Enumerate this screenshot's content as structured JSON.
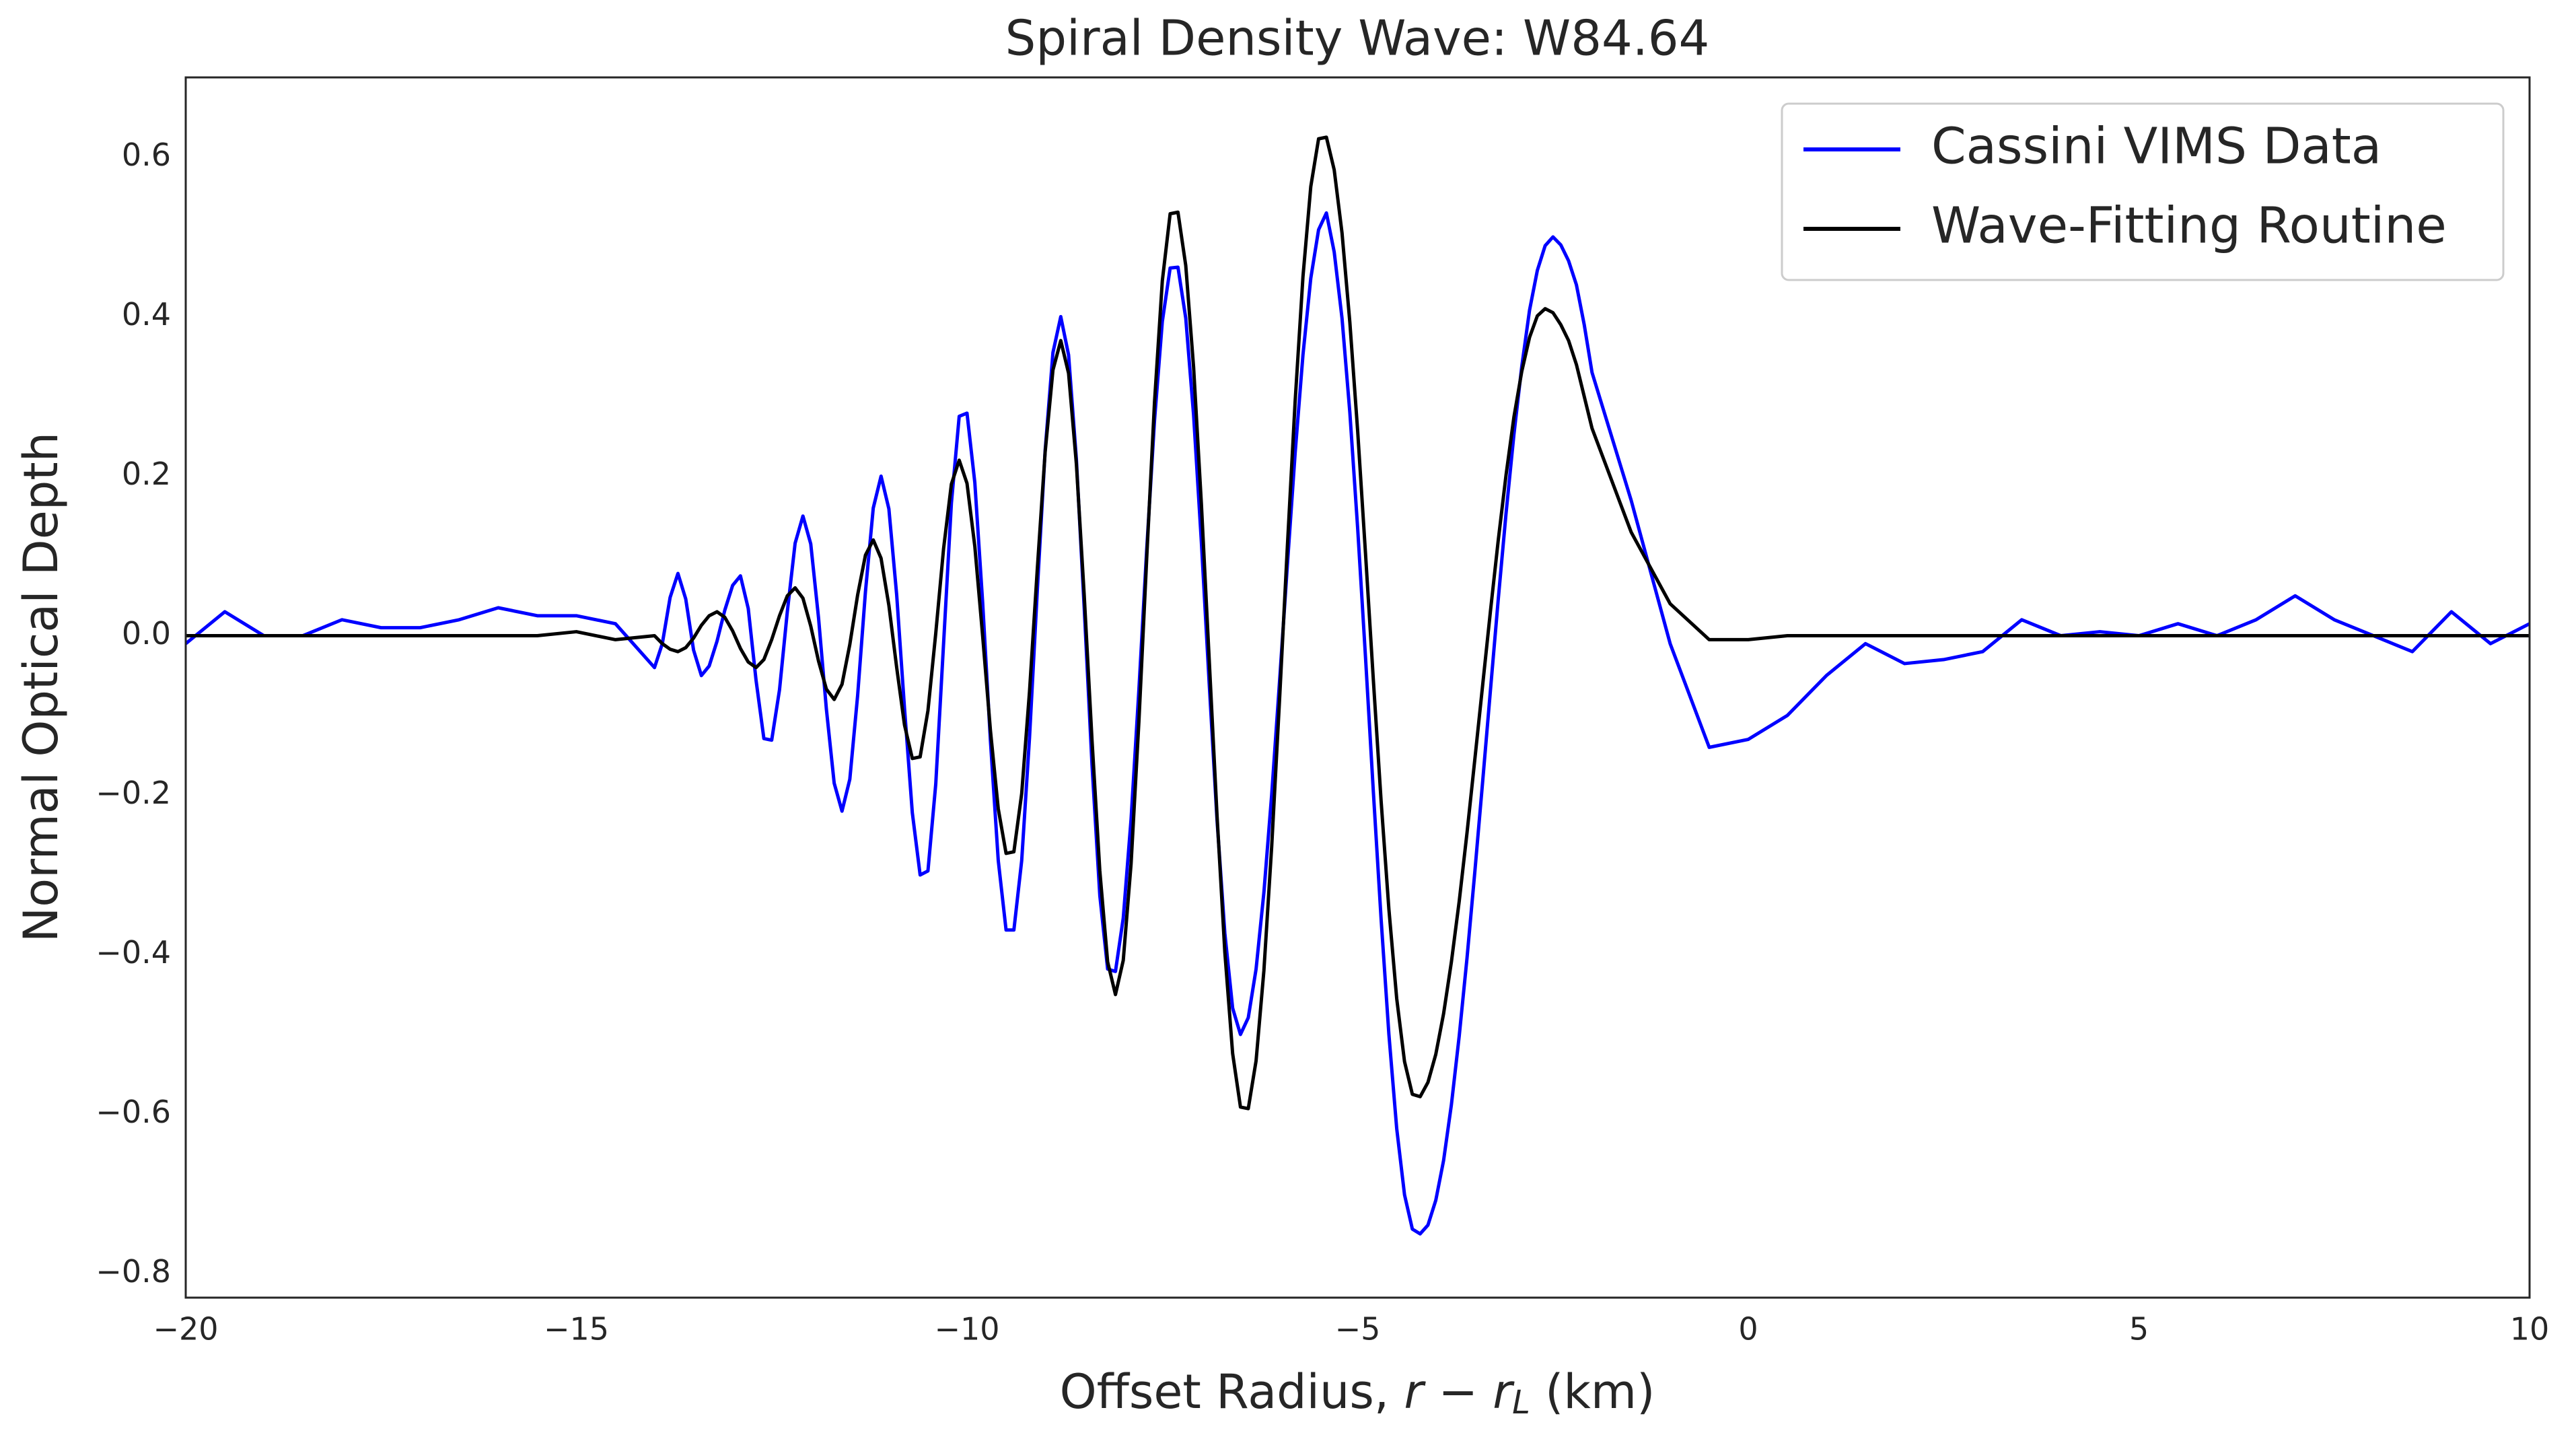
{
  "chart_data": {
    "type": "line",
    "title": "Spiral Density Wave: W84.64",
    "xlabel": [
      "Offset Radius, ",
      "r − r",
      "L",
      " (km)"
    ],
    "ylabel": "Normal Optical Depth",
    "xlim": [
      -20,
      10
    ],
    "ylim": [
      -0.83,
      0.7
    ],
    "xticks": [
      {
        "value": -20,
        "label": "−20"
      },
      {
        "value": -15,
        "label": "−15"
      },
      {
        "value": -10,
        "label": "−10"
      },
      {
        "value": -5,
        "label": "−5"
      },
      0,
      5,
      10
    ],
    "yticks": [
      {
        "value": -0.8,
        "label": "−0.8"
      },
      {
        "value": -0.6,
        "label": "−0.6"
      },
      {
        "value": -0.4,
        "label": "−0.4"
      },
      {
        "value": -0.2,
        "label": "−0.2"
      },
      {
        "value": 0,
        "label": "0.0"
      },
      0.2,
      0.4,
      0.6
    ],
    "grid": false,
    "legend": "upper right",
    "x": [
      -20,
      -19.5,
      -19,
      -18.5,
      -18,
      -17.5,
      -17,
      -16.5,
      -16,
      -15.5,
      -15,
      -14.5,
      -14,
      -13.9,
      -13.8,
      -13.7,
      -13.6,
      -13.5,
      -13.4,
      -13.3,
      -13.2,
      -13.1,
      -13,
      -12.9,
      -12.8,
      -12.7,
      -12.6,
      -12.5,
      -12.4,
      -12.3,
      -12.2,
      -12.1,
      -12,
      -11.9,
      -11.8,
      -11.7,
      -11.6,
      -11.5,
      -11.4,
      -11.3,
      -11.2,
      -11.1,
      -11,
      -10.9,
      -10.8,
      -10.7,
      -10.6,
      -10.5,
      -10.4,
      -10.3,
      -10.2,
      -10.1,
      -10,
      -9.9,
      -9.8,
      -9.7,
      -9.6,
      -9.5,
      -9.4,
      -9.3,
      -9.2,
      -9.1,
      -9,
      -8.9,
      -8.8,
      -8.7,
      -8.6,
      -8.5,
      -8.4,
      -8.3,
      -8.2,
      -8.1,
      -8,
      -7.9,
      -7.8,
      -7.7,
      -7.6,
      -7.5,
      -7.4,
      -7.3,
      -7.2,
      -7.1,
      -7,
      -6.9,
      -6.8,
      -6.7,
      -6.6,
      -6.5,
      -6.4,
      -6.3,
      -6.2,
      -6.1,
      -6,
      -5.9,
      -5.8,
      -5.7,
      -5.6,
      -5.5,
      -5.4,
      -5.3,
      -5.2,
      -5.1,
      -5,
      -4.9,
      -4.8,
      -4.7,
      -4.6,
      -4.5,
      -4.4,
      -4.3,
      -4.2,
      -4.1,
      -4,
      -3.9,
      -3.8,
      -3.7,
      -3.6,
      -3.5,
      -3.4,
      -3.3,
      -3.2,
      -3.1,
      -3,
      -2.9,
      -2.8,
      -2.7,
      -2.6,
      -2.5,
      -2.4,
      -2.3,
      -2.2,
      -2.1,
      -2,
      -1.5,
      -1,
      -0.5,
      0,
      0.5,
      1,
      1.5,
      2,
      2.5,
      3,
      3.5,
      4,
      4.5,
      5,
      5.5,
      6,
      6.5,
      7,
      7.5,
      8,
      8.5,
      9,
      9.5,
      10
    ],
    "series": [
      {
        "name": "Cassini VIMS Data",
        "color": "#0000ff",
        "values": [
          -0.01,
          0.03,
          0.0,
          0.0,
          0.02,
          0.01,
          0.01,
          0.02,
          0.035,
          0.025,
          0.025,
          0.015,
          -0.04,
          -0.01,
          0.048,
          0.078,
          0.046,
          -0.018,
          -0.05,
          -0.038,
          -0.007,
          0.032,
          0.063,
          0.075,
          0.034,
          -0.056,
          -0.129,
          -0.131,
          -0.068,
          0.03,
          0.116,
          0.15,
          0.115,
          0.022,
          -0.092,
          -0.185,
          -0.22,
          -0.18,
          -0.075,
          0.055,
          0.16,
          0.2,
          0.159,
          0.051,
          -0.091,
          -0.222,
          -0.3,
          -0.295,
          -0.186,
          -0.01,
          0.166,
          0.275,
          0.279,
          0.192,
          0.042,
          -0.132,
          -0.282,
          -0.369,
          -0.369,
          -0.282,
          -0.128,
          0.057,
          0.232,
          0.355,
          0.4,
          0.352,
          0.221,
          0.035,
          -0.162,
          -0.326,
          -0.418,
          -0.421,
          -0.354,
          -0.23,
          -0.068,
          0.108,
          0.27,
          0.394,
          0.461,
          0.462,
          0.398,
          0.277,
          0.117,
          -0.06,
          -0.231,
          -0.373,
          -0.467,
          -0.5,
          -0.479,
          -0.418,
          -0.322,
          -0.199,
          -0.058,
          0.088,
          0.229,
          0.352,
          0.448,
          0.509,
          0.53,
          0.481,
          0.398,
          0.28,
          0.135,
          -0.026,
          -0.194,
          -0.355,
          -0.5,
          -0.618,
          -0.701,
          -0.744,
          -0.75,
          -0.739,
          -0.708,
          -0.658,
          -0.588,
          -0.502,
          -0.404,
          -0.296,
          -0.183,
          -0.068,
          0.046,
          0.154,
          0.252,
          0.337,
          0.408,
          0.458,
          0.489,
          0.5,
          0.49,
          0.47,
          0.44,
          0.39,
          0.33,
          0.17,
          -0.01,
          -0.14,
          -0.13,
          -0.1,
          -0.05,
          -0.01,
          -0.035,
          -0.03,
          -0.02,
          0.02,
          0.0,
          0.005,
          0.0,
          0.015,
          0.0,
          0.02,
          0.05,
          0.02,
          0.0,
          -0.02,
          0.03,
          -0.01,
          0.015
        ]
      },
      {
        "name": "Wave-Fitting Routine",
        "color": "#000000",
        "values": [
          0,
          0,
          0,
          0,
          0,
          0,
          0,
          0,
          0,
          0,
          0.005,
          -0.005,
          0.0,
          -0.01,
          -0.017,
          -0.02,
          -0.015,
          -0.003,
          0.013,
          0.025,
          0.03,
          0.023,
          0.006,
          -0.016,
          -0.033,
          -0.04,
          -0.03,
          -0.005,
          0.025,
          0.05,
          0.06,
          0.047,
          0.012,
          -0.032,
          -0.067,
          -0.08,
          -0.061,
          -0.011,
          0.051,
          0.101,
          0.12,
          0.097,
          0.038,
          -0.04,
          -0.112,
          -0.154,
          -0.152,
          -0.094,
          0.003,
          0.109,
          0.19,
          0.22,
          0.191,
          0.112,
          0.0,
          -0.119,
          -0.217,
          -0.273,
          -0.271,
          -0.198,
          -0.07,
          0.084,
          0.23,
          0.333,
          0.37,
          0.329,
          0.215,
          0.051,
          -0.131,
          -0.295,
          -0.409,
          -0.45,
          -0.407,
          -0.286,
          -0.108,
          0.097,
          0.293,
          0.445,
          0.529,
          0.531,
          0.464,
          0.337,
          0.165,
          -0.03,
          -0.225,
          -0.397,
          -0.524,
          -0.591,
          -0.593,
          -0.533,
          -0.42,
          -0.264,
          -0.081,
          0.111,
          0.294,
          0.45,
          0.563,
          0.623,
          0.625,
          0.584,
          0.505,
          0.393,
          0.257,
          0.104,
          -0.054,
          -0.207,
          -0.343,
          -0.455,
          -0.534,
          -0.575,
          -0.578,
          -0.56,
          -0.525,
          -0.474,
          -0.409,
          -0.333,
          -0.247,
          -0.155,
          -0.062,
          0.031,
          0.12,
          0.202,
          0.274,
          0.331,
          0.374,
          0.401,
          0.41,
          0.405,
          0.39,
          0.37,
          0.34,
          0.3,
          0.26,
          0.13,
          0.04,
          -0.005,
          -0.005,
          0,
          0,
          0,
          0,
          0,
          0,
          0,
          0,
          0,
          0,
          0,
          0,
          0,
          0,
          0,
          0,
          0,
          0,
          0,
          0
        ]
      }
    ]
  }
}
